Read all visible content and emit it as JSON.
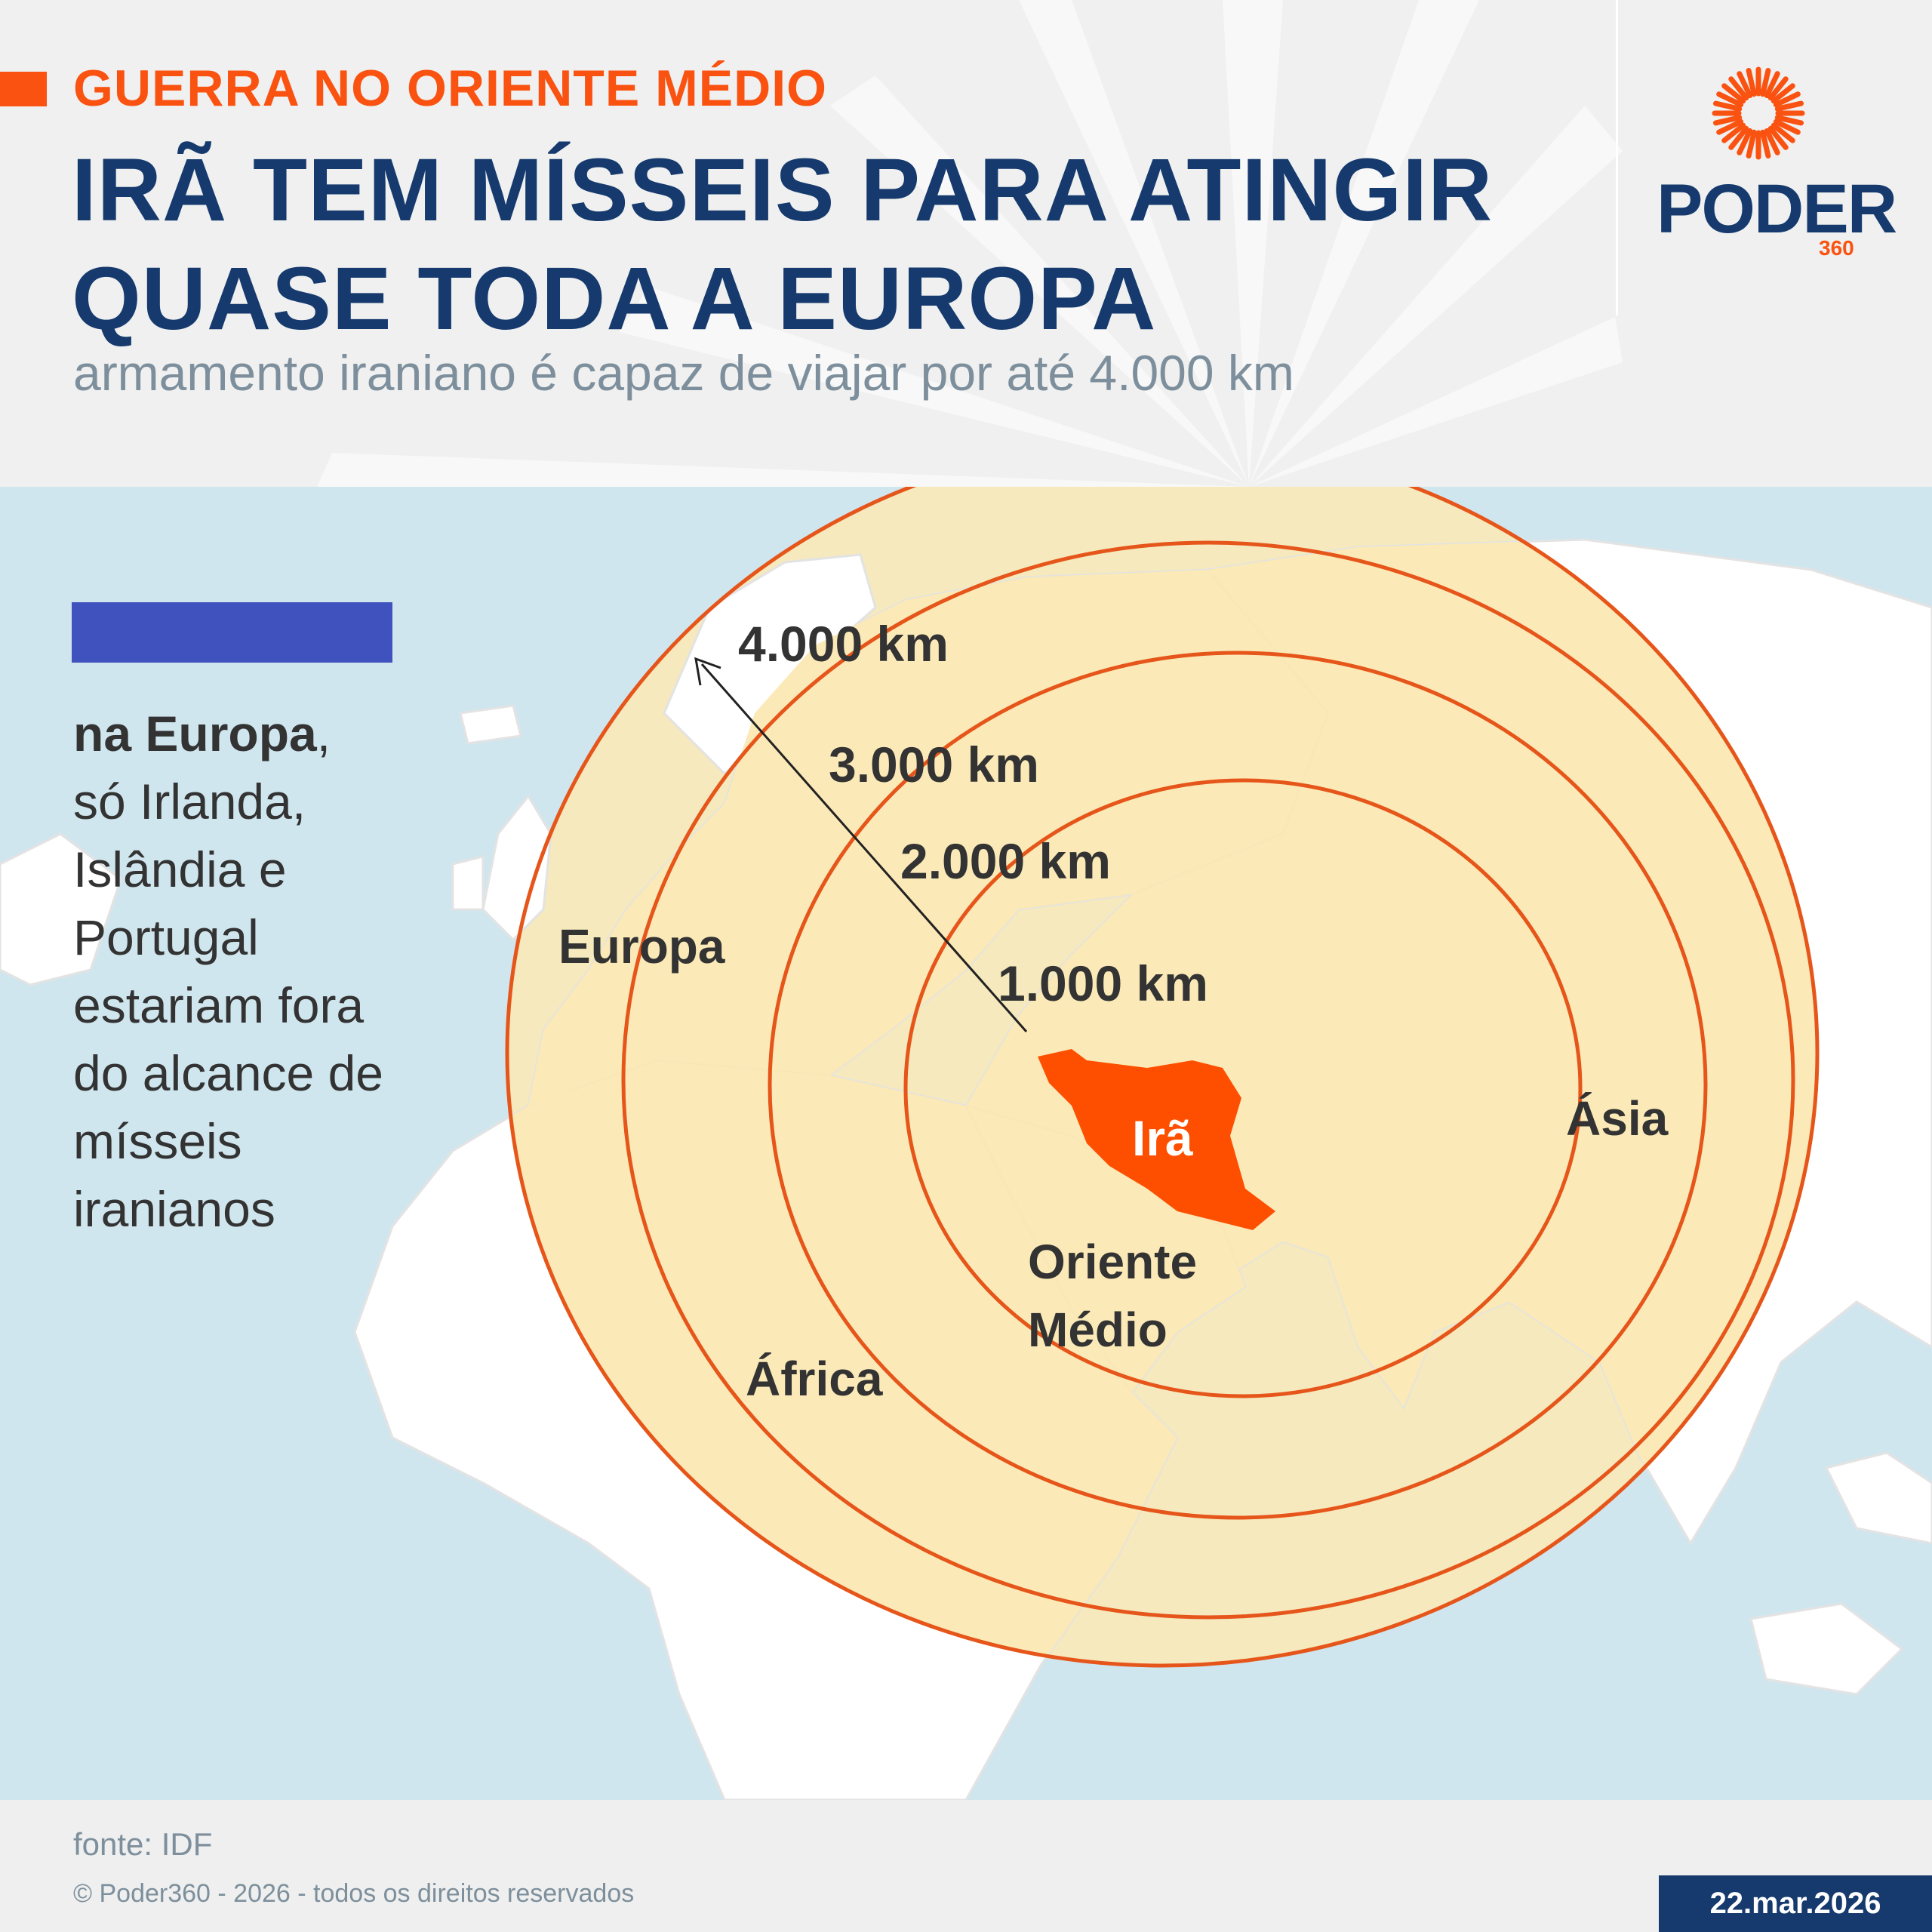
{
  "colors": {
    "accent": "#fa5210",
    "navy": "#163a6e",
    "subtitle_gray": "#7d8f9c",
    "text_dark": "#333333",
    "ocean": "#d0e6ee",
    "land": "#ffffff",
    "range_fill": "#fbe9b4",
    "range_land": "#d3d3a3",
    "ring_stroke": "#e6551a",
    "iran_fill": "#fe4f00",
    "legend_swatch": "#4052bd",
    "date_box": "#163a6e"
  },
  "header": {
    "kicker": "GUERRA NO ORIENTE MÉDIO",
    "headline_line1": "IRÃ TEM MÍSSEIS PARA ATINGIR",
    "headline_line2": "QUASE TODA A EUROPA",
    "subtitle": "armamento iraniano é capaz de viajar por até 4.000 km"
  },
  "logo": {
    "word": "PODER",
    "number": "360",
    "icon": "sunburst-logo-icon"
  },
  "map": {
    "ranges": [
      {
        "label": "1.000 km",
        "km": 1000
      },
      {
        "label": "2.000 km",
        "km": 2000
      },
      {
        "label": "3.000 km",
        "km": 3000
      },
      {
        "label": "4.000 km",
        "km": 4000
      }
    ],
    "country": "Irã",
    "regions": {
      "europe": "Europa",
      "asia": "Ásia",
      "middle_east_line1": "Oriente",
      "middle_east_line2": "Médio",
      "africa": "África"
    }
  },
  "legend": {
    "note_bold": "na Europa",
    "note_lines": [
      ",",
      "só Irlanda,",
      "Islândia e",
      "Portugal",
      "estariam fora",
      "do alcance de",
      "mísseis",
      "iranianos"
    ]
  },
  "footer": {
    "source": "fonte: IDF",
    "copyright": "© Poder360 - 2026 - todos os direitos reservados",
    "date": "22.mar.2026"
  }
}
